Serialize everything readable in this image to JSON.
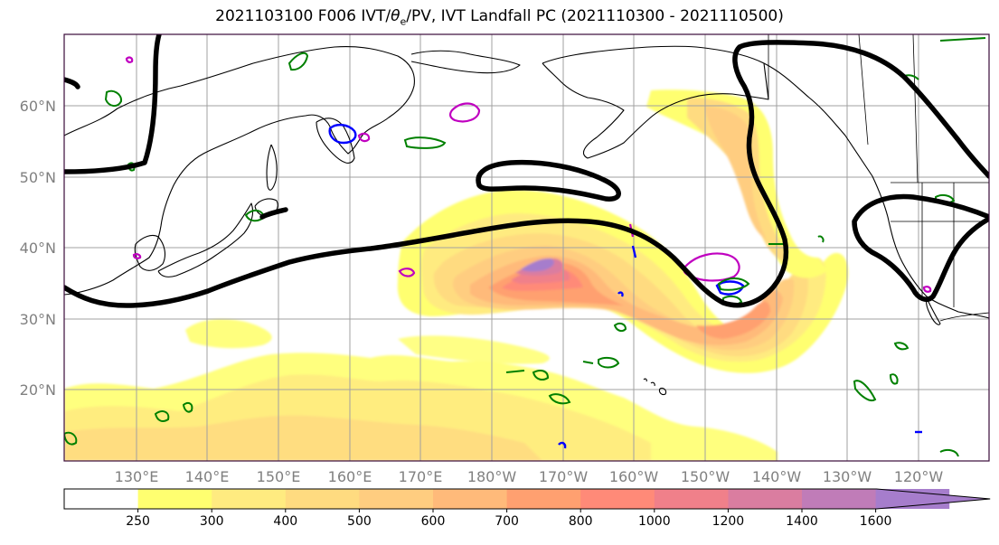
{
  "title": {
    "prefix": "2021103100 F006 IVT/",
    "theta": "θ",
    "theta_sub": "e",
    "suffix": "/PV, IVT Landfall PC (2021110300 - 2021110500)"
  },
  "map": {
    "lat_labels": [
      "60°N",
      "50°N",
      "40°N",
      "30°N",
      "20°N"
    ],
    "lon_labels": [
      "130°E",
      "140°E",
      "150°E",
      "160°E",
      "170°E",
      "180°W",
      "170°W",
      "160°W",
      "150°W",
      "140°W",
      "130°W",
      "120°W"
    ]
  },
  "colorbar": {
    "levels": [
      250,
      300,
      400,
      500,
      600,
      700,
      800,
      1000,
      1200,
      1400,
      1600
    ],
    "labels": [
      "250",
      "300",
      "400",
      "500",
      "600",
      "700",
      "800",
      "1000",
      "1200",
      "1400",
      "1600"
    ],
    "colors": [
      "#ffffff",
      "#ffff70",
      "#ffeb80",
      "#ffdb80",
      "#ffcd80",
      "#ffba7a",
      "#ffa070",
      "#ff8a78",
      "#f0808a",
      "#da7da0",
      "#c07cb8",
      "#a67dcc"
    ]
  },
  "colors": {
    "pc_contour": "#000000",
    "theta_contour": "#008000",
    "pv_blue": "#0000ff",
    "pv_magenta": "#c000c0",
    "gridline": "#a0a0a0",
    "coast": "#000000"
  }
}
